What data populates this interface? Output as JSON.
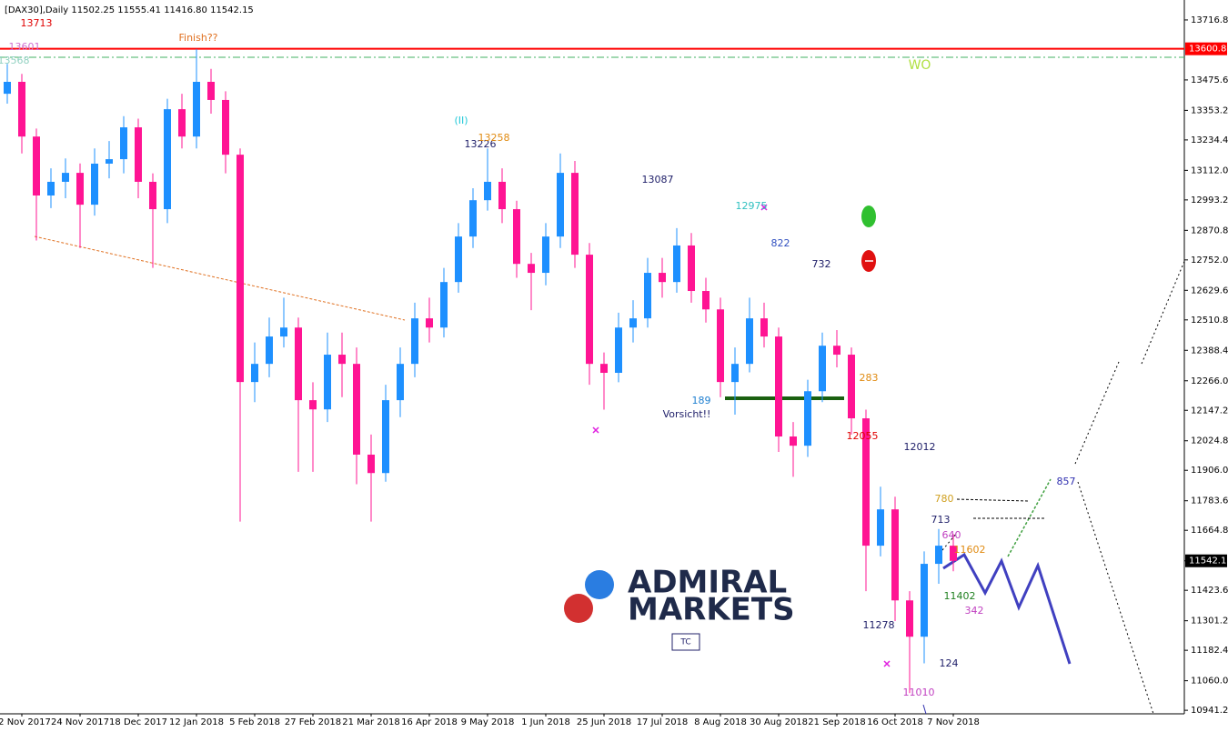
{
  "chart_data": {
    "type": "candlestick",
    "title": "[DAX30],Daily  11502.25 11555.41 11416.80 11542.15",
    "up_color": "#1e90ff",
    "down_color": "#ff1493",
    "categories": [
      null,
      "2 Nov 2017",
      null,
      null,
      null,
      "24 Nov 2017",
      null,
      null,
      null,
      "18 Dec 2017",
      null,
      null,
      null,
      "12 Jan 2018",
      null,
      null,
      null,
      "5 Feb 2018",
      null,
      null,
      null,
      "27 Feb 2018",
      null,
      null,
      null,
      "21 Mar 2018",
      null,
      null,
      null,
      "16 Apr 2018",
      null,
      null,
      null,
      "9 May 2018",
      null,
      null,
      null,
      "1 Jun 2018",
      null,
      null,
      null,
      "25 Jun 2018",
      null,
      null,
      null,
      "17 Jul 2018",
      null,
      null,
      null,
      "8 Aug 2018",
      null,
      null,
      null,
      "30 Aug 2018",
      null,
      null,
      null,
      "21 Sep 2018",
      null,
      null,
      null,
      "16 Oct 2018",
      null,
      null,
      null,
      "7 Nov 2018"
    ],
    "open": [
      13420,
      13468,
      13248,
      13011,
      13066,
      13102,
      12974,
      13139,
      13157,
      13285,
      13066,
      12956,
      13358,
      13248,
      13468,
      13395,
      13175,
      12261,
      12334,
      12444,
      12480,
      12188,
      12151,
      12371,
      12334,
      11969,
      11895,
      12188,
      12334,
      12517,
      12480,
      12663,
      12846,
      12992,
      13066,
      12956,
      12736,
      12700,
      12846,
      13102,
      12773,
      12334,
      12298,
      12480,
      12517,
      12700,
      12663,
      12810,
      12627,
      12553,
      12261,
      12334,
      12517,
      12444,
      12042,
      12005,
      12224,
      12407,
      12371,
      12115,
      11603,
      11749,
      11383,
      11237,
      11530,
      11603
    ],
    "high": [
      13540,
      13500,
      13280,
      13120,
      13160,
      13140,
      13200,
      13230,
      13330,
      13320,
      13100,
      13400,
      13420,
      13600,
      13520,
      13430,
      13200,
      12420,
      12520,
      12600,
      12520,
      12260,
      12460,
      12460,
      12400,
      12050,
      12250,
      12400,
      12580,
      12600,
      12720,
      12900,
      13040,
      13200,
      13120,
      12990,
      12780,
      12900,
      13180,
      13150,
      12820,
      12380,
      12540,
      12590,
      12760,
      12760,
      12880,
      12860,
      12680,
      12600,
      12400,
      12600,
      12580,
      12480,
      12100,
      12270,
      12460,
      12470,
      12400,
      12150,
      11840,
      11800,
      11420,
      11580,
      11670,
      11650
    ],
    "low": [
      13380,
      13180,
      12830,
      12960,
      13000,
      12800,
      12930,
      13080,
      13100,
      13000,
      12720,
      12900,
      13200,
      13200,
      13340,
      13100,
      11700,
      12180,
      12280,
      12400,
      11900,
      11900,
      12100,
      12200,
      11850,
      11700,
      11860,
      12120,
      12280,
      12420,
      12440,
      12620,
      12800,
      12950,
      12900,
      12680,
      12550,
      12650,
      12800,
      12720,
      12250,
      12150,
      12260,
      12420,
      12480,
      12600,
      12620,
      12580,
      12500,
      12200,
      12130,
      12300,
      12400,
      11980,
      11880,
      11960,
      12180,
      12320,
      12050,
      11420,
      11560,
      11300,
      11010,
      11130,
      11450,
      11500
    ],
    "close": [
      13468,
      13248,
      13011,
      13066,
      13102,
      12974,
      13139,
      13157,
      13285,
      13066,
      12956,
      13358,
      13248,
      13468,
      13395,
      13175,
      12261,
      12334,
      12444,
      12480,
      12188,
      12151,
      12371,
      12334,
      11969,
      11895,
      12188,
      12334,
      12517,
      12480,
      12663,
      12846,
      12992,
      13066,
      12956,
      12736,
      12700,
      12846,
      13102,
      12773,
      12334,
      12298,
      12480,
      12517,
      12700,
      12663,
      12810,
      12627,
      12553,
      12261,
      12334,
      12517,
      12444,
      12042,
      12005,
      12224,
      12407,
      12371,
      12115,
      11603,
      11749,
      11383,
      11237,
      11530,
      11603,
      11542
    ],
    "ylim": [
      10927,
      13797
    ],
    "yticks": [
      {
        "value": 13716.8,
        "label": "13716.80"
      },
      {
        "value": 13475.6,
        "label": "13475.60"
      },
      {
        "value": 13353.2,
        "label": "13353.20"
      },
      {
        "value": 13234.4,
        "label": "13234.40"
      },
      {
        "value": 13112.0,
        "label": "13112.00"
      },
      {
        "value": 12993.2,
        "label": "12993.20"
      },
      {
        "value": 12870.8,
        "label": "12870.80"
      },
      {
        "value": 12752.0,
        "label": "12752.00"
      },
      {
        "value": 12629.6,
        "label": "12629.60"
      },
      {
        "value": 12510.8,
        "label": "12510.80"
      },
      {
        "value": 12388.4,
        "label": "12388.40"
      },
      {
        "value": 12266.0,
        "label": "12266.00"
      },
      {
        "value": 12147.2,
        "label": "12147.20"
      },
      {
        "value": 12024.8,
        "label": "12024.80"
      },
      {
        "value": 11906.0,
        "label": "11906.00"
      },
      {
        "value": 11783.6,
        "label": "11783.60"
      },
      {
        "value": 11664.8,
        "label": "11664.80"
      },
      {
        "value": 11423.6,
        "label": "11423.60"
      },
      {
        "value": 11301.2,
        "label": "11301.20"
      },
      {
        "value": 11182.4,
        "label": "11182.40"
      },
      {
        "value": 11060.0,
        "label": "11060.00"
      },
      {
        "value": 10941.2,
        "label": "10941.20"
      }
    ],
    "price_line": {
      "value": 13600.8,
      "label": "13600.80",
      "color": "#ff0000"
    },
    "last_price": {
      "value": 11542.15,
      "label": "11542.15"
    },
    "annotations": [
      {
        "text": "13713",
        "color": "#e00000"
      },
      {
        "text": "13601",
        "color": "#d070d0"
      },
      {
        "text": "13568",
        "color": "#90d0c0"
      },
      {
        "text": "Finish??",
        "color": "#e07020"
      },
      {
        "text": "(II)",
        "color": "#20c8d8"
      },
      {
        "text": "13226",
        "color": "#20206a"
      },
      {
        "text": "13258",
        "color": "#e08a10"
      },
      {
        "text": "13087",
        "color": "#20206a"
      },
      {
        "text": "12975",
        "color": "#30c0c0"
      },
      {
        "text": "822",
        "color": "#3050c0"
      },
      {
        "text": "732",
        "color": "#20206a"
      },
      {
        "text": "283",
        "color": "#e08a10"
      },
      {
        "text": "189",
        "color": "#2080d0"
      },
      {
        "text": "Vorsicht!!",
        "color": "#20206a"
      },
      {
        "text": "12055",
        "color": "#e00000"
      },
      {
        "text": "12012",
        "color": "#20206a"
      },
      {
        "text": "780",
        "color": "#d0a020"
      },
      {
        "text": "713",
        "color": "#20206a"
      },
      {
        "text": "640",
        "color": "#c040c0"
      },
      {
        "text": "11602",
        "color": "#e08a10"
      },
      {
        "text": "11402",
        "color": "#208020"
      },
      {
        "text": "342",
        "color": "#c040c0"
      },
      {
        "text": "11278",
        "color": "#20206a"
      },
      {
        "text": "124",
        "color": "#20206a"
      },
      {
        "text": "11010",
        "color": "#c040c0"
      },
      {
        "text": "857",
        "color": "#3030b0"
      },
      {
        "text": "WO",
        "color": "#b0e040"
      },
      {
        "text": "TC",
        "color": "#20206a"
      }
    ],
    "logo": [
      "ADMIRAL",
      "MARKETS"
    ]
  }
}
